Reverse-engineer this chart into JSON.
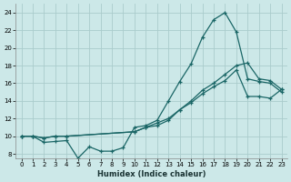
{
  "background_color": "#cce8e8",
  "grid_color": "#aacccc",
  "line_color": "#1a6666",
  "xlabel": "Humidex (Indice chaleur)",
  "xlim": [
    -0.5,
    23.5
  ],
  "ylim": [
    7.5,
    25.0
  ],
  "xticks": [
    0,
    1,
    2,
    3,
    4,
    5,
    6,
    7,
    8,
    9,
    10,
    11,
    12,
    13,
    14,
    15,
    16,
    17,
    18,
    19,
    20,
    21,
    22,
    23
  ],
  "yticks": [
    8,
    10,
    12,
    14,
    16,
    18,
    20,
    22,
    24
  ],
  "series1_x": [
    0,
    1,
    2,
    3,
    4,
    5,
    6,
    7,
    8,
    9,
    10,
    11,
    12,
    13,
    14,
    15,
    16,
    17,
    18,
    19,
    20,
    21,
    22,
    23
  ],
  "series1_y": [
    10.0,
    10.0,
    9.3,
    9.4,
    9.5,
    7.5,
    8.8,
    8.3,
    8.3,
    8.7,
    11.0,
    11.2,
    11.8,
    14.0,
    16.2,
    18.2,
    21.2,
    23.2,
    24.0,
    21.8,
    16.5,
    16.2,
    16.0,
    15.0
  ],
  "series2_x": [
    0,
    1,
    2,
    3,
    4,
    10,
    11,
    12,
    13,
    14,
    15,
    16,
    17,
    18,
    19,
    20,
    21,
    22,
    23
  ],
  "series2_y": [
    10.0,
    10.0,
    9.8,
    10.0,
    10.0,
    10.5,
    11.0,
    11.5,
    12.0,
    13.0,
    14.0,
    15.2,
    16.0,
    17.0,
    18.0,
    18.3,
    16.5,
    16.3,
    15.3
  ],
  "series3_x": [
    0,
    1,
    2,
    3,
    4,
    10,
    11,
    12,
    13,
    14,
    15,
    16,
    17,
    18,
    19,
    20,
    21,
    22,
    23
  ],
  "series3_y": [
    10.0,
    10.0,
    9.8,
    10.0,
    10.0,
    10.5,
    11.0,
    11.2,
    11.8,
    13.0,
    13.8,
    14.8,
    15.6,
    16.3,
    17.5,
    14.5,
    14.5,
    14.3,
    15.3
  ]
}
